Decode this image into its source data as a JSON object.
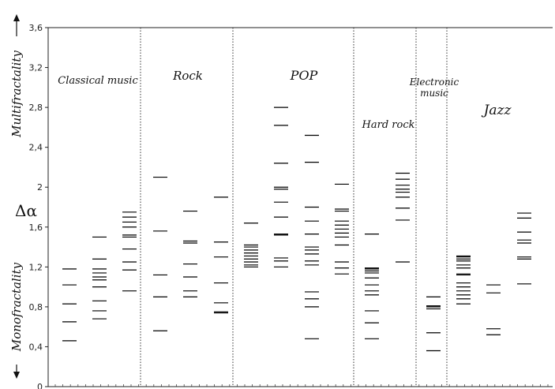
{
  "chart_data": {
    "type": "scatter",
    "title": "",
    "ylabel": "Δα",
    "y_top_label": "Multifractality",
    "y_bottom_label": "Monofractality",
    "ylim": [
      0,
      3.6
    ],
    "yticks": [
      "0",
      "0,4",
      "0,8",
      "1,2",
      "1,6",
      "2",
      "2,4",
      "2,8",
      "3,2",
      "3,6"
    ],
    "ytick_values": [
      0,
      0.4,
      0.8,
      1.2,
      1.6,
      2.0,
      2.4,
      2.8,
      3.2,
      3.6
    ],
    "grid": false,
    "genres": [
      {
        "name": "Classical music"
      },
      {
        "name": "Rock"
      },
      {
        "name": "POP"
      },
      {
        "name": "Hard rock"
      },
      {
        "name": "Electronic music"
      },
      {
        "name": "Jazz"
      }
    ],
    "series": [
      {
        "genre": "Classical music",
        "values": [
          0.46,
          0.65,
          0.83,
          1.02,
          1.18
        ]
      },
      {
        "genre": "Classical music",
        "values": [
          0.68,
          0.76,
          0.86,
          1.0,
          1.07,
          1.1,
          1.14,
          1.18,
          1.28,
          1.5
        ]
      },
      {
        "genre": "Classical music",
        "values": [
          0.96,
          1.17,
          1.25,
          1.38,
          1.5,
          1.52,
          1.6,
          1.65,
          1.7,
          1.75
        ]
      },
      {
        "genre": "Rock",
        "values": [
          0.56,
          0.9,
          1.12,
          1.56,
          2.1
        ]
      },
      {
        "genre": "Rock",
        "values": [
          0.9,
          0.96,
          1.1,
          1.23,
          1.44,
          1.46,
          1.76
        ]
      },
      {
        "genre": "Rock",
        "values": [
          0.74,
          0.75,
          0.84,
          1.04,
          1.3,
          1.45,
          1.9
        ]
      },
      {
        "genre": "POP",
        "values": [
          1.2,
          1.22,
          1.25,
          1.28,
          1.31,
          1.34,
          1.37,
          1.4,
          1.42,
          1.64
        ]
      },
      {
        "genre": "POP",
        "values": [
          1.2,
          1.26,
          1.29,
          1.52,
          1.53,
          1.7,
          1.85,
          1.98,
          2.0,
          2.24,
          2.62,
          2.8
        ]
      },
      {
        "genre": "POP",
        "values": [
          0.48,
          0.8,
          0.88,
          0.95,
          1.22,
          1.26,
          1.33,
          1.37,
          1.4,
          1.53,
          1.66,
          1.8,
          2.25,
          2.52
        ]
      },
      {
        "genre": "POP",
        "values": [
          1.13,
          1.19,
          1.25,
          1.42,
          1.5,
          1.54,
          1.58,
          1.62,
          1.66,
          1.76,
          1.78,
          2.03
        ]
      },
      {
        "genre": "Hard rock",
        "values": [
          0.48,
          0.64,
          0.76,
          0.92,
          0.96,
          1.02,
          1.09,
          1.14,
          1.16,
          1.18,
          1.19,
          1.53
        ]
      },
      {
        "genre": "Hard rock",
        "values": [
          1.25,
          1.67,
          1.79,
          1.9,
          1.95,
          1.98,
          2.02,
          2.08,
          2.14
        ]
      },
      {
        "genre": "Electronic music",
        "values": [
          0.36,
          0.54,
          0.78,
          0.8,
          0.81,
          0.9
        ]
      },
      {
        "genre": "Jazz",
        "values": [
          0.83,
          0.88,
          0.92,
          0.96,
          1.0,
          1.04,
          1.12,
          1.13,
          1.19,
          1.22,
          1.26,
          1.28,
          1.3,
          1.31
        ]
      },
      {
        "genre": "Jazz",
        "values": [
          0.52,
          0.58,
          0.94,
          1.02
        ]
      },
      {
        "genre": "Jazz",
        "values": [
          1.03,
          1.28,
          1.3,
          1.44,
          1.47,
          1.55,
          1.69,
          1.74
        ]
      }
    ]
  }
}
